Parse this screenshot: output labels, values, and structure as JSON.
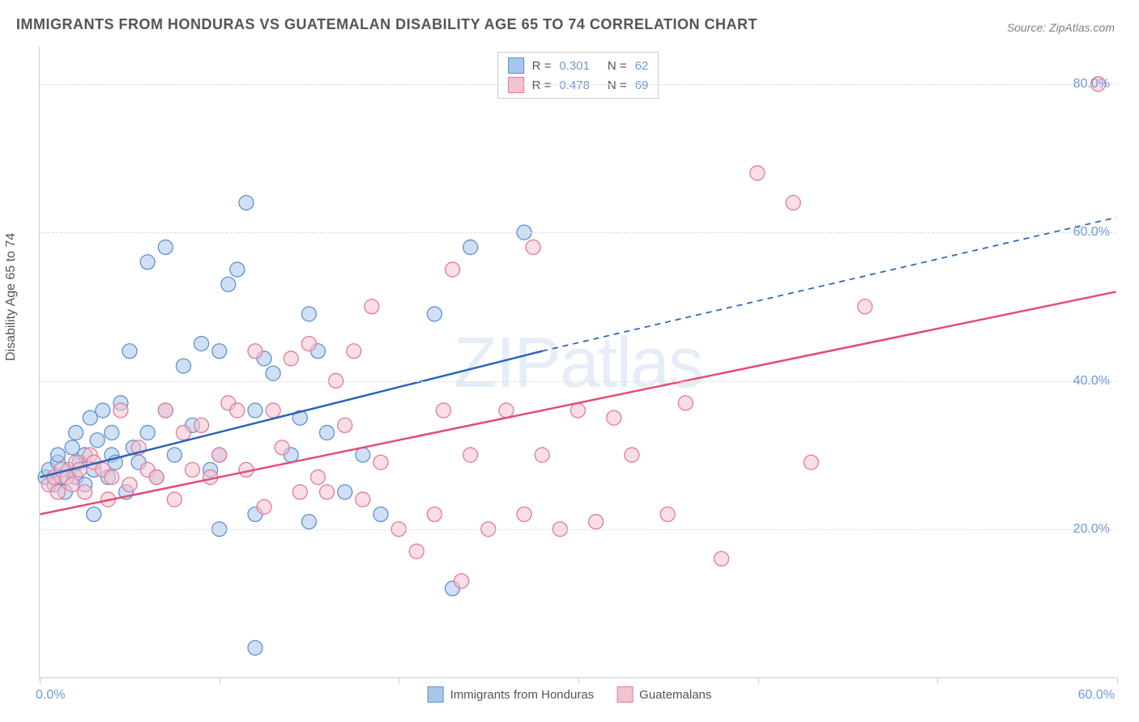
{
  "title": "IMMIGRANTS FROM HONDURAS VS GUATEMALAN DISABILITY AGE 65 TO 74 CORRELATION CHART",
  "source": "Source: ZipAtlas.com",
  "ylabel": "Disability Age 65 to 74",
  "watermark": "ZIPatlas",
  "chart": {
    "type": "scatter",
    "xlim": [
      0,
      60
    ],
    "ylim": [
      0,
      85
    ],
    "xtick_positions": [
      0,
      10,
      20,
      30,
      40,
      50,
      60
    ],
    "xtick_labels": {
      "0": "0.0%",
      "60": "60.0%"
    },
    "ytick_positions": [
      20,
      40,
      60,
      80
    ],
    "ytick_labels": {
      "20": "20.0%",
      "40": "40.0%",
      "60": "60.0%",
      "80": "80.0%"
    },
    "grid_color": "#dddddd",
    "axis_color": "#cccccc",
    "background_color": "#ffffff",
    "marker_radius": 9,
    "marker_opacity": 0.55,
    "series": [
      {
        "name": "Immigrants from Honduras",
        "color_fill": "#a8c6ec",
        "color_stroke": "#5f91cf",
        "R": "0.301",
        "N": "62",
        "trend": {
          "x1": 0,
          "y1": 27,
          "x2": 28,
          "y2": 44,
          "dash_x2": 60,
          "dash_y2": 62,
          "color": "#2a66b4",
          "width": 2.5
        },
        "points": [
          [
            0.3,
            27
          ],
          [
            0.5,
            28
          ],
          [
            0.8,
            26
          ],
          [
            1,
            29
          ],
          [
            1,
            30
          ],
          [
            1.2,
            27
          ],
          [
            1.4,
            25
          ],
          [
            1.6,
            28
          ],
          [
            1.8,
            31
          ],
          [
            2,
            27
          ],
          [
            2,
            33
          ],
          [
            2.2,
            29
          ],
          [
            2.5,
            26
          ],
          [
            2.5,
            30
          ],
          [
            2.8,
            35
          ],
          [
            3,
            22
          ],
          [
            3,
            28
          ],
          [
            3.2,
            32
          ],
          [
            3.5,
            36
          ],
          [
            3.8,
            27
          ],
          [
            4,
            33
          ],
          [
            4,
            30
          ],
          [
            4.2,
            29
          ],
          [
            4.5,
            37
          ],
          [
            4.8,
            25
          ],
          [
            5,
            44
          ],
          [
            5.2,
            31
          ],
          [
            5.5,
            29
          ],
          [
            6,
            56
          ],
          [
            6,
            33
          ],
          [
            6.5,
            27
          ],
          [
            7,
            36
          ],
          [
            7.5,
            30
          ],
          [
            7,
            58
          ],
          [
            8,
            42
          ],
          [
            8.5,
            34
          ],
          [
            9,
            45
          ],
          [
            9.5,
            28
          ],
          [
            10,
            44
          ],
          [
            10,
            30
          ],
          [
            10,
            20
          ],
          [
            10.5,
            53
          ],
          [
            11,
            55
          ],
          [
            11.5,
            64
          ],
          [
            12,
            36
          ],
          [
            12,
            22
          ],
          [
            12.5,
            43
          ],
          [
            12,
            4
          ],
          [
            13,
            41
          ],
          [
            14,
            30
          ],
          [
            14.5,
            35
          ],
          [
            15,
            49
          ],
          [
            15,
            21
          ],
          [
            15.5,
            44
          ],
          [
            16,
            33
          ],
          [
            17,
            25
          ],
          [
            18,
            30
          ],
          [
            19,
            22
          ],
          [
            22,
            49
          ],
          [
            23,
            12
          ],
          [
            24,
            58
          ],
          [
            27,
            60
          ]
        ]
      },
      {
        "name": "Guatemalans",
        "color_fill": "#f5c2cf",
        "color_stroke": "#e37a98",
        "R": "0.478",
        "N": "69",
        "trend": {
          "x1": 0,
          "y1": 22,
          "x2": 60,
          "y2": 52,
          "color": "#e34c78",
          "width": 2.5
        },
        "points": [
          [
            0.5,
            26
          ],
          [
            0.8,
            27
          ],
          [
            1,
            25
          ],
          [
            1.2,
            28
          ],
          [
            1.5,
            27
          ],
          [
            1.8,
            26
          ],
          [
            2,
            29
          ],
          [
            2.2,
            28
          ],
          [
            2.5,
            25
          ],
          [
            2.8,
            30
          ],
          [
            3,
            29
          ],
          [
            3.5,
            28
          ],
          [
            3.8,
            24
          ],
          [
            4,
            27
          ],
          [
            4.5,
            36
          ],
          [
            5,
            26
          ],
          [
            5.5,
            31
          ],
          [
            6,
            28
          ],
          [
            6.5,
            27
          ],
          [
            7,
            36
          ],
          [
            7.5,
            24
          ],
          [
            8,
            33
          ],
          [
            8.5,
            28
          ],
          [
            9,
            34
          ],
          [
            9.5,
            27
          ],
          [
            10,
            30
          ],
          [
            10.5,
            37
          ],
          [
            11,
            36
          ],
          [
            11.5,
            28
          ],
          [
            12,
            44
          ],
          [
            12.5,
            23
          ],
          [
            13,
            36
          ],
          [
            13.5,
            31
          ],
          [
            14,
            43
          ],
          [
            14.5,
            25
          ],
          [
            15,
            45
          ],
          [
            15.5,
            27
          ],
          [
            16,
            25
          ],
          [
            16.5,
            40
          ],
          [
            17,
            34
          ],
          [
            17.5,
            44
          ],
          [
            18,
            24
          ],
          [
            18.5,
            50
          ],
          [
            19,
            29
          ],
          [
            20,
            20
          ],
          [
            21,
            17
          ],
          [
            22,
            22
          ],
          [
            22.5,
            36
          ],
          [
            23,
            55
          ],
          [
            23.5,
            13
          ],
          [
            24,
            30
          ],
          [
            25,
            20
          ],
          [
            26,
            36
          ],
          [
            27,
            22
          ],
          [
            27.5,
            58
          ],
          [
            28,
            30
          ],
          [
            29,
            20
          ],
          [
            30,
            36
          ],
          [
            31,
            21
          ],
          [
            32,
            35
          ],
          [
            33,
            30
          ],
          [
            35,
            22
          ],
          [
            36,
            37
          ],
          [
            38,
            16
          ],
          [
            40,
            68
          ],
          [
            42,
            64
          ],
          [
            43,
            29
          ],
          [
            46,
            50
          ],
          [
            59,
            80
          ]
        ]
      }
    ]
  },
  "legend_bottom": [
    {
      "label": "Immigrants from Honduras",
      "fill": "#a8c6ec",
      "stroke": "#5f91cf"
    },
    {
      "label": "Guatemalans",
      "fill": "#f5c2cf",
      "stroke": "#e37a98"
    }
  ]
}
